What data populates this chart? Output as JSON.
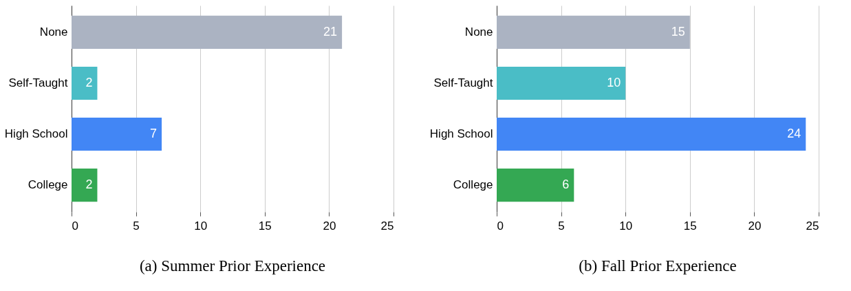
{
  "chart_data": [
    {
      "type": "bar",
      "orientation": "horizontal",
      "title": "(a) Summer Prior Experience",
      "categories": [
        "None",
        "Self-Taught",
        "High School",
        "College"
      ],
      "values": [
        21,
        2,
        7,
        2
      ],
      "colors": [
        "#abb3c2",
        "#4abdc6",
        "#4286f5",
        "#34a853"
      ],
      "xlim": [
        0,
        25
      ],
      "xticks": [
        0,
        5,
        10,
        15,
        20,
        25
      ],
      "grid": "x",
      "data_labels": true
    },
    {
      "type": "bar",
      "orientation": "horizontal",
      "title": "(b) Fall Prior Experience",
      "categories": [
        "None",
        "Self-Taught",
        "High School",
        "College"
      ],
      "values": [
        15,
        10,
        24,
        6
      ],
      "colors": [
        "#abb3c2",
        "#4abdc6",
        "#4286f5",
        "#34a853"
      ],
      "xlim": [
        0,
        25
      ],
      "xticks": [
        0,
        5,
        10,
        15,
        20,
        25
      ],
      "grid": "x",
      "data_labels": true
    }
  ]
}
